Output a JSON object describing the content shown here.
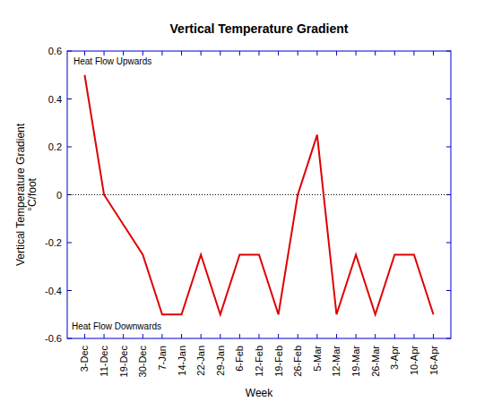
{
  "chart_data": {
    "type": "line",
    "title": "Vertical Temperature Gradient",
    "xlabel": "Week",
    "ylabel": "Vertical Temperature Gradient\n°C/foot",
    "annotations": [
      "Heat Flow Upwards",
      "Heat Flow Downwards"
    ],
    "categories": [
      "3-Dec",
      "11-Dec",
      "19-Dec",
      "30-Dec",
      "7-Jan",
      "14-Jan",
      "22-Jan",
      "29-Jan",
      "6-Feb",
      "12-Feb",
      "19-Feb",
      "26-Feb",
      "5-Mar",
      "12-Mar",
      "19-Mar",
      "26-Mar",
      "3-Apr",
      "10-Apr",
      "16-Apr"
    ],
    "values": [
      0.5,
      0,
      -0.125,
      -0.25,
      -0.5,
      -0.5,
      -0.25,
      -0.5,
      -0.25,
      -0.25,
      -0.5,
      0,
      0.25,
      -0.5,
      -0.25,
      -0.5,
      -0.25,
      -0.25,
      -0.5
    ],
    "color": "#e00000",
    "ylim": [
      -0.6,
      0.6
    ],
    "yticks": [
      -0.6,
      -0.4,
      -0.2,
      0,
      0.2,
      0.4,
      0.6
    ],
    "reference_line": {
      "y": 0,
      "line_style": "dotted"
    },
    "grid": false
  }
}
